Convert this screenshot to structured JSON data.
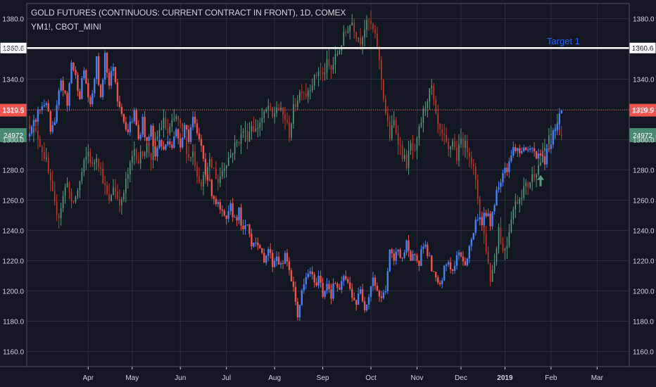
{
  "header": {
    "title": "GOLD FUTURES (CONTINUOUS: CURRENT CONTRACT IN FRONT), 1D, COMEX",
    "subtitle": "YM1!, CBOT_MINI"
  },
  "colors": {
    "background": "#131722",
    "grid": "#2a2e39",
    "text": "#d1d4dc",
    "up_main": "#4a7ff0",
    "down_main": "#ef5350",
    "up_overlay": "#5a9a80",
    "down_overlay": "#c0392b",
    "current_price": "#ef5350",
    "overlay_badge": "#4a8a6e",
    "annotation": "#2962ff",
    "arrow": "#5a9a80"
  },
  "chart_data": {
    "type": "candlestick",
    "y_axis": {
      "range": [
        1150,
        1390
      ],
      "ticks": [
        1160.0,
        1180.0,
        1200.0,
        1220.0,
        1240.0,
        1260.0,
        1280.0,
        1300.0,
        1320.0,
        1340.0,
        1360.0,
        1380.0
      ],
      "tick_labels": [
        "1160.0",
        "1180.0",
        "1200.0",
        "1220.0",
        "1240.0",
        "1260.0",
        "1280.0",
        "1300.0",
        "1320.0",
        "1340.0",
        "1360.0",
        "1380.0"
      ]
    },
    "x_axis": {
      "labels": [
        "Apr",
        "May",
        "Jun",
        "Jul",
        "Aug",
        "Sep",
        "Oct",
        "Nov",
        "Dec",
        "2019",
        "Feb",
        "Mar"
      ],
      "label_positions_index": [
        28,
        49,
        72,
        94,
        117,
        140,
        163,
        185,
        206,
        227,
        249,
        271
      ],
      "bold_labels": [
        "2019"
      ],
      "index_range": [
        0,
        285
      ]
    },
    "horizontal_line": {
      "value": 1360.6,
      "label": "1360.6",
      "color": "#ffffff"
    },
    "current_price": {
      "value": 1319.5,
      "label": "1319.5"
    },
    "overlay_badge": {
      "value": 1303,
      "label": "24972"
    },
    "annotation": {
      "text": "Target 1",
      "value": 1365,
      "x_index": 247
    },
    "arrow_marker": {
      "x_index": 244,
      "value": 1272
    },
    "gold_path": [
      [
        0,
        1302
      ],
      [
        4,
        1318
      ],
      [
        8,
        1326
      ],
      [
        10,
        1305
      ],
      [
        12,
        1310
      ],
      [
        15,
        1340
      ],
      [
        18,
        1322
      ],
      [
        20,
        1352
      ],
      [
        24,
        1330
      ],
      [
        26,
        1346
      ],
      [
        29,
        1320
      ],
      [
        32,
        1352
      ],
      [
        34,
        1325
      ],
      [
        36,
        1358
      ],
      [
        38,
        1336
      ],
      [
        40,
        1350
      ],
      [
        42,
        1328
      ],
      [
        44,
        1320
      ],
      [
        46,
        1305
      ],
      [
        48,
        1310
      ],
      [
        50,
        1318
      ],
      [
        52,
        1300
      ],
      [
        54,
        1313
      ],
      [
        56,
        1296
      ],
      [
        58,
        1308
      ],
      [
        60,
        1288
      ],
      [
        62,
        1300
      ],
      [
        64,
        1292
      ],
      [
        66,
        1302
      ],
      [
        68,
        1296
      ],
      [
        70,
        1305
      ],
      [
        72,
        1298
      ],
      [
        74,
        1310
      ],
      [
        76,
        1302
      ],
      [
        78,
        1314
      ],
      [
        80,
        1302
      ],
      [
        82,
        1296
      ],
      [
        84,
        1280
      ],
      [
        86,
        1270
      ],
      [
        88,
        1262
      ],
      [
        90,
        1256
      ],
      [
        92,
        1250
      ],
      [
        94,
        1245
      ],
      [
        96,
        1255
      ],
      [
        98,
        1248
      ],
      [
        100,
        1252
      ],
      [
        102,
        1238
      ],
      [
        104,
        1244
      ],
      [
        106,
        1232
      ],
      [
        108,
        1235
      ],
      [
        110,
        1225
      ],
      [
        112,
        1222
      ],
      [
        114,
        1228
      ],
      [
        116,
        1218
      ],
      [
        118,
        1224
      ],
      [
        120,
        1216
      ],
      [
        122,
        1222
      ],
      [
        124,
        1215
      ],
      [
        126,
        1200
      ],
      [
        128,
        1185
      ],
      [
        130,
        1198
      ],
      [
        132,
        1208
      ],
      [
        134,
        1214
      ],
      [
        136,
        1203
      ],
      [
        138,
        1210
      ],
      [
        140,
        1198
      ],
      [
        142,
        1206
      ],
      [
        144,
        1198
      ],
      [
        146,
        1206
      ],
      [
        148,
        1198
      ],
      [
        150,
        1210
      ],
      [
        152,
        1204
      ],
      [
        154,
        1198
      ],
      [
        156,
        1192
      ],
      [
        158,
        1200
      ],
      [
        160,
        1190
      ],
      [
        162,
        1198
      ],
      [
        164,
        1210
      ],
      [
        166,
        1200
      ],
      [
        168,
        1194
      ],
      [
        170,
        1202
      ],
      [
        172,
        1225
      ],
      [
        174,
        1220
      ],
      [
        176,
        1228
      ],
      [
        178,
        1222
      ],
      [
        180,
        1230
      ],
      [
        182,
        1218
      ],
      [
        184,
        1226
      ],
      [
        186,
        1220
      ],
      [
        188,
        1232
      ],
      [
        190,
        1226
      ],
      [
        192,
        1214
      ],
      [
        194,
        1206
      ],
      [
        196,
        1202
      ],
      [
        198,
        1214
      ],
      [
        200,
        1220
      ],
      [
        202,
        1212
      ],
      [
        204,
        1222
      ],
      [
        206,
        1224
      ],
      [
        208,
        1218
      ],
      [
        210,
        1228
      ],
      [
        212,
        1240
      ],
      [
        214,
        1250
      ],
      [
        216,
        1246
      ],
      [
        218,
        1252
      ],
      [
        220,
        1244
      ],
      [
        222,
        1260
      ],
      [
        224,
        1270
      ],
      [
        226,
        1280
      ],
      [
        228,
        1282
      ],
      [
        230,
        1290
      ],
      [
        232,
        1296
      ],
      [
        234,
        1290
      ],
      [
        236,
        1296
      ],
      [
        238,
        1290
      ],
      [
        240,
        1294
      ],
      [
        242,
        1288
      ],
      [
        244,
        1292
      ],
      [
        246,
        1286
      ],
      [
        248,
        1296
      ],
      [
        250,
        1304
      ],
      [
        252,
        1312
      ],
      [
        254,
        1319.5
      ]
    ],
    "ym_path": [
      [
        0,
        1310
      ],
      [
        4,
        1302
      ],
      [
        8,
        1285
      ],
      [
        10,
        1270
      ],
      [
        12,
        1256
      ],
      [
        14,
        1250
      ],
      [
        16,
        1262
      ],
      [
        18,
        1274
      ],
      [
        20,
        1256
      ],
      [
        22,
        1262
      ],
      [
        24,
        1272
      ],
      [
        26,
        1284
      ],
      [
        28,
        1292
      ],
      [
        30,
        1282
      ],
      [
        32,
        1290
      ],
      [
        34,
        1280
      ],
      [
        36,
        1268
      ],
      [
        38,
        1258
      ],
      [
        40,
        1270
      ],
      [
        42,
        1262
      ],
      [
        44,
        1258
      ],
      [
        46,
        1272
      ],
      [
        48,
        1282
      ],
      [
        50,
        1294
      ],
      [
        52,
        1286
      ],
      [
        54,
        1292
      ],
      [
        56,
        1296
      ],
      [
        58,
        1288
      ],
      [
        60,
        1298
      ],
      [
        62,
        1306
      ],
      [
        64,
        1312
      ],
      [
        66,
        1304
      ],
      [
        68,
        1310
      ],
      [
        70,
        1315
      ],
      [
        72,
        1308
      ],
      [
        74,
        1300
      ],
      [
        76,
        1288
      ],
      [
        78,
        1292
      ],
      [
        80,
        1278
      ],
      [
        82,
        1272
      ],
      [
        84,
        1276
      ],
      [
        86,
        1284
      ],
      [
        88,
        1280
      ],
      [
        90,
        1272
      ],
      [
        92,
        1280
      ],
      [
        94,
        1286
      ],
      [
        96,
        1290
      ],
      [
        98,
        1296
      ],
      [
        100,
        1300
      ],
      [
        102,
        1306
      ],
      [
        104,
        1302
      ],
      [
        106,
        1310
      ],
      [
        108,
        1306
      ],
      [
        110,
        1312
      ],
      [
        112,
        1316
      ],
      [
        114,
        1322
      ],
      [
        116,
        1314
      ],
      [
        118,
        1322
      ],
      [
        120,
        1318
      ],
      [
        122,
        1314
      ],
      [
        124,
        1304
      ],
      [
        126,
        1320
      ],
      [
        128,
        1328
      ],
      [
        130,
        1334
      ],
      [
        132,
        1330
      ],
      [
        134,
        1336
      ],
      [
        136,
        1340
      ],
      [
        138,
        1346
      ],
      [
        140,
        1342
      ],
      [
        142,
        1350
      ],
      [
        144,
        1346
      ],
      [
        146,
        1354
      ],
      [
        148,
        1360
      ],
      [
        150,
        1368
      ],
      [
        152,
        1374
      ],
      [
        154,
        1378
      ],
      [
        156,
        1370
      ],
      [
        158,
        1366
      ],
      [
        160,
        1374
      ],
      [
        162,
        1378
      ],
      [
        164,
        1372
      ],
      [
        166,
        1362
      ],
      [
        168,
        1340
      ],
      [
        170,
        1318
      ],
      [
        172,
        1302
      ],
      [
        174,
        1312
      ],
      [
        176,
        1300
      ],
      [
        178,
        1290
      ],
      [
        180,
        1284
      ],
      [
        182,
        1296
      ],
      [
        184,
        1290
      ],
      [
        186,
        1306
      ],
      [
        188,
        1318
      ],
      [
        190,
        1328
      ],
      [
        192,
        1334
      ],
      [
        194,
        1314
      ],
      [
        196,
        1304
      ],
      [
        198,
        1300
      ],
      [
        200,
        1292
      ],
      [
        202,
        1300
      ],
      [
        204,
        1288
      ],
      [
        206,
        1300
      ],
      [
        208,
        1296
      ],
      [
        210,
        1292
      ],
      [
        212,
        1280
      ],
      [
        214,
        1262
      ],
      [
        216,
        1246
      ],
      [
        218,
        1228
      ],
      [
        220,
        1208
      ],
      [
        222,
        1220
      ],
      [
        224,
        1242
      ],
      [
        226,
        1226
      ],
      [
        228,
        1232
      ],
      [
        230,
        1250
      ],
      [
        232,
        1258
      ],
      [
        234,
        1262
      ],
      [
        236,
        1268
      ],
      [
        238,
        1270
      ],
      [
        240,
        1276
      ],
      [
        242,
        1280
      ],
      [
        244,
        1286
      ],
      [
        246,
        1294
      ],
      [
        248,
        1300
      ],
      [
        250,
        1306
      ],
      [
        252,
        1310
      ],
      [
        254,
        1303
      ]
    ]
  }
}
